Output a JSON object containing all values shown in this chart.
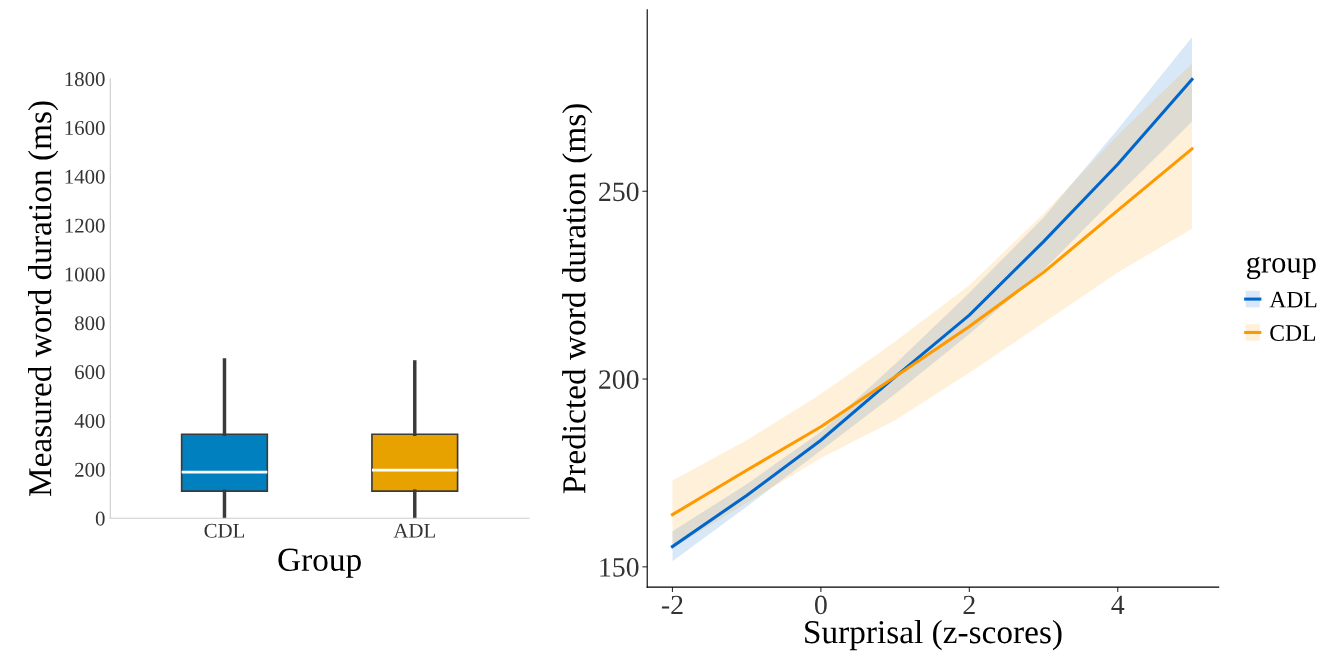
{
  "chart_data": [
    {
      "type": "box",
      "xlabel": "Group",
      "ylabel": "Measured word duration (ms)",
      "categories": [
        "CDL",
        "ADL"
      ],
      "colors": [
        "#0080bf",
        "#e8a200"
      ],
      "boxes": [
        {
          "low": 4,
          "q1": 111,
          "median": 189,
          "q3": 344,
          "high": 648
        },
        {
          "low": 4,
          "q1": 111,
          "median": 197,
          "q3": 344,
          "high": 640
        }
      ],
      "ylim": [
        0,
        1800
      ],
      "yticks": [
        0,
        200,
        400,
        600,
        800,
        1000,
        1200,
        1400,
        1600,
        1800
      ],
      "grid": false
    },
    {
      "type": "line",
      "xlabel": "Surprisal (z-scores)",
      "ylabel": "Predicted word duration (ms)",
      "legend_title": "group",
      "legend": "right",
      "grid": false,
      "x": [
        -2,
        -1,
        0,
        1,
        2,
        3,
        4,
        5
      ],
      "series": [
        {
          "name": "ADL",
          "color": "#0066cc",
          "values": [
            155.4,
            169,
            183.7,
            200.6,
            217,
            236.6,
            257.2,
            279.8
          ],
          "lower": [
            151.5,
            166,
            181,
            196,
            212,
            229,
            249,
            268.5
          ],
          "upper": [
            159.5,
            172,
            186,
            204,
            223,
            243,
            266.5,
            291
          ]
        },
        {
          "name": "CDL",
          "color": "#ff9900",
          "values": [
            163.9,
            175.7,
            187.3,
            200.6,
            214,
            228.4,
            244.9,
            261.3
          ],
          "lower": [
            155,
            167,
            179,
            189,
            201.7,
            215,
            228.4,
            240
          ],
          "upper": [
            173,
            183.7,
            196,
            210,
            225,
            244,
            265,
            284
          ]
        }
      ],
      "xlim": [
        -2.34,
        5.36
      ],
      "xticks": [
        -2,
        0,
        2,
        4
      ],
      "ylim": [
        144.6,
        298.3
      ],
      "yticks": [
        150,
        200,
        250
      ]
    }
  ]
}
